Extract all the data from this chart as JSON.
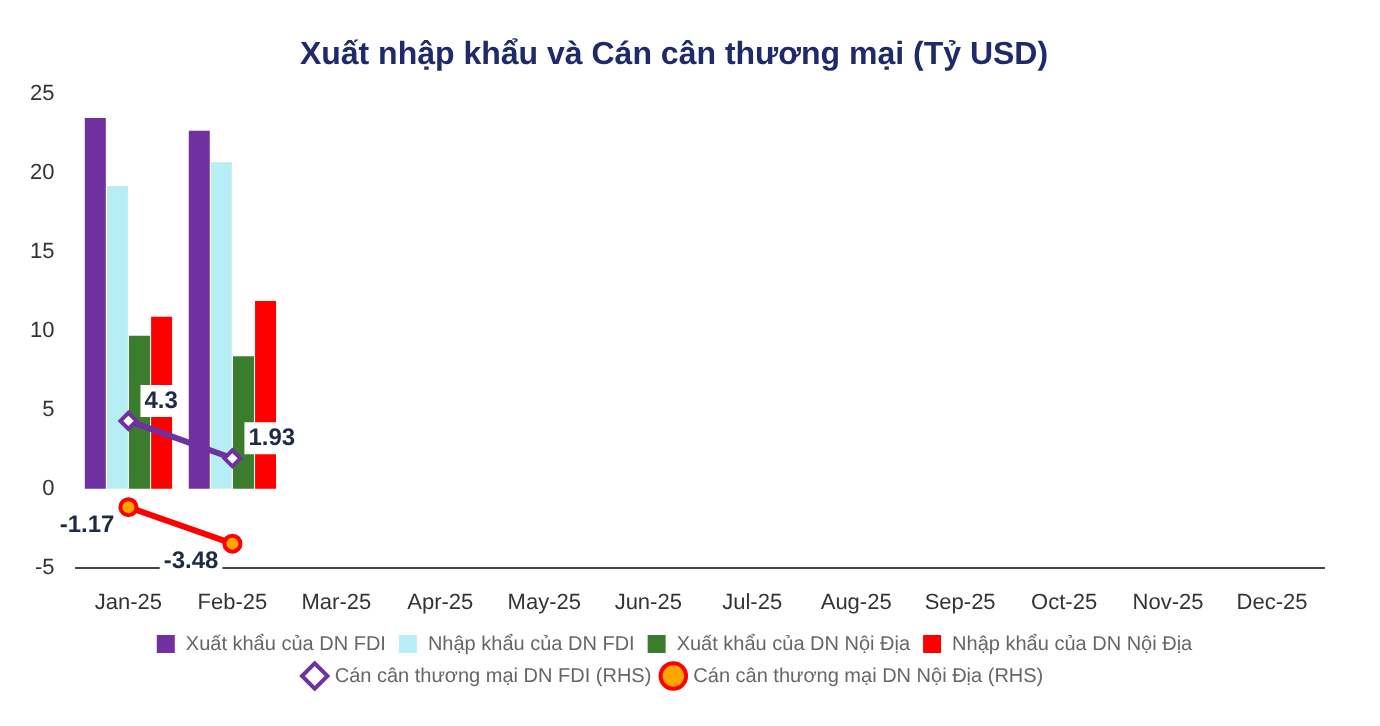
{
  "chart_data": {
    "type": "bar",
    "title": "Xuất nhập khẩu và Cán cân thương mại (Tỷ USD)",
    "categories": [
      "Jan-25",
      "Feb-25",
      "Mar-25",
      "Apr-25",
      "May-25",
      "Jun-25",
      "Jul-25",
      "Aug-25",
      "Sep-25",
      "Oct-25",
      "Nov-25",
      "Dec-25"
    ],
    "series": [
      {
        "name": "Xuất khẩu của DN FDI",
        "color": "#7030a0",
        "values": [
          23.5,
          22.7,
          null,
          null,
          null,
          null,
          null,
          null,
          null,
          null,
          null,
          null
        ]
      },
      {
        "name": "Nhập khẩu của DN FDI",
        "color": "#b7eef5",
        "values": [
          19.2,
          20.7,
          null,
          null,
          null,
          null,
          null,
          null,
          null,
          null,
          null,
          null
        ]
      },
      {
        "name": "Xuất khẩu của DN Nội Địa",
        "color": "#3a7d2c",
        "values": [
          9.7,
          8.4,
          null,
          null,
          null,
          null,
          null,
          null,
          null,
          null,
          null,
          null
        ]
      },
      {
        "name": "Nhập khẩu của DN Nội Địa",
        "color": "#ff0000",
        "values": [
          10.9,
          11.9,
          null,
          null,
          null,
          null,
          null,
          null,
          null,
          null,
          null,
          null
        ]
      },
      {
        "name": "Cán cân thương mại DN FDI (RHS)",
        "type": "line",
        "marker": "diamond",
        "color": "#7030a0",
        "values": [
          4.3,
          1.93,
          null,
          null,
          null,
          null,
          null,
          null,
          null,
          null,
          null,
          null
        ],
        "value_labels": [
          "4.3",
          "1.93",
          null,
          null,
          null,
          null,
          null,
          null,
          null,
          null,
          null,
          null
        ]
      },
      {
        "name": "Cán cân thương mại DN Nội Địa (RHS)",
        "type": "line",
        "marker": "circle",
        "color": "#ff0000",
        "values": [
          -1.17,
          -3.48,
          null,
          null,
          null,
          null,
          null,
          null,
          null,
          null,
          null,
          null
        ],
        "value_labels": [
          "-1.17",
          "-3.48",
          null,
          null,
          null,
          null,
          null,
          null,
          null,
          null,
          null,
          null
        ]
      }
    ],
    "ylim": [
      -5,
      25
    ],
    "yticks": [
      -5,
      0,
      5,
      10,
      15,
      20,
      25
    ],
    "grid": false,
    "legend": "bottom"
  }
}
